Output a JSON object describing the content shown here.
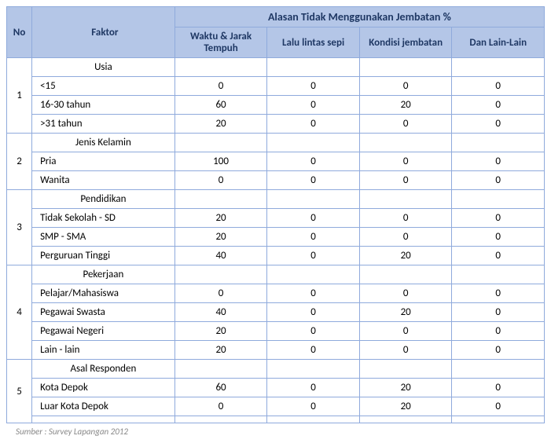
{
  "headers": {
    "no": "No",
    "faktor": "Faktor",
    "alasan": "Alasan Tidak Menggunakan Jembatan %",
    "col1": "Waktu & Jarak Tempuh",
    "col2": "Lalu lintas sepi",
    "col3": "Kondisi jembatan",
    "col4": "Dan Lain-Lain"
  },
  "sections": [
    {
      "no": "1",
      "title": "Usia",
      "rows": [
        {
          "label": "<15",
          "v": [
            "0",
            "0",
            "0",
            "0"
          ]
        },
        {
          "label": "16-30  tahun",
          "v": [
            "60",
            "0",
            "20",
            "0"
          ]
        },
        {
          "label": ">31 tahun",
          "v": [
            "20",
            "0",
            "0",
            "0"
          ]
        }
      ]
    },
    {
      "no": "2",
      "title": "Jenis Kelamin",
      "rows": [
        {
          "label": "Pria",
          "v": [
            "100",
            "0",
            "0",
            "0"
          ]
        },
        {
          "label": "Wanita",
          "v": [
            "0",
            "0",
            "0",
            "0"
          ]
        }
      ]
    },
    {
      "no": "3",
      "title": "Pendidikan",
      "rows": [
        {
          "label": "Tidak Sekolah - SD",
          "v": [
            "20",
            "0",
            "0",
            "0"
          ]
        },
        {
          "label": "SMP - SMA",
          "v": [
            "20",
            "0",
            "0",
            "0"
          ]
        },
        {
          "label": "Perguruan Tinggi",
          "v": [
            "40",
            "0",
            "20",
            "0"
          ]
        }
      ]
    },
    {
      "no": "4",
      "title": "Pekerjaan",
      "rows": [
        {
          "label": "Pelajar/Mahasiswa",
          "v": [
            "0",
            "0",
            "0",
            "0"
          ]
        },
        {
          "label": "Pegawai Swasta",
          "v": [
            "40",
            "0",
            "20",
            "0"
          ]
        },
        {
          "label": "Pegawai Negeri",
          "v": [
            "20",
            "0",
            "0",
            "0"
          ]
        },
        {
          "label": "Lain - lain",
          "v": [
            "20",
            "0",
            "0",
            "0"
          ]
        }
      ]
    },
    {
      "no": "5",
      "title": "Asal Responden",
      "rows": [
        {
          "label": "Kota Depok",
          "v": [
            "60",
            "0",
            "20",
            "0"
          ]
        },
        {
          "label": "Luar Kota Depok",
          "v": [
            "0",
            "0",
            "20",
            "0"
          ]
        },
        {
          "label": "",
          "v": [
            "",
            "",
            "",
            ""
          ]
        }
      ]
    }
  ],
  "source": "Sumber : Survey Lapangan 2012",
  "colors": {
    "header_bg": "#b4c6e7",
    "border": "#8faadc",
    "header_text": "#1f3864"
  }
}
